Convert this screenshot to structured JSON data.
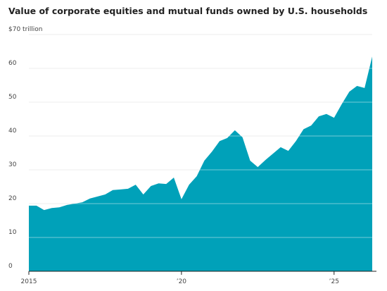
{
  "chart_data": {
    "type": "area",
    "title": "Value of corporate equities and mutual funds owned by U.S. households",
    "x": [
      2015,
      2015.25,
      2015.5,
      2015.75,
      2016,
      2016.25,
      2016.5,
      2016.75,
      2017,
      2017.25,
      2017.5,
      2017.75,
      2018,
      2018.25,
      2018.5,
      2018.75,
      2019,
      2019.25,
      2019.5,
      2019.75,
      2020,
      2020.25,
      2020.5,
      2020.75,
      2021,
      2021.25,
      2021.5,
      2021.75,
      2022,
      2022.25,
      2022.5,
      2022.75,
      2023,
      2023.25,
      2023.5,
      2023.75,
      2024,
      2024.25,
      2024.5,
      2024.75,
      2025,
      2025.25,
      2025.5,
      2025.75,
      2026,
      2026.25
    ],
    "values": [
      19.4,
      19.4,
      18.1,
      18.7,
      18.9,
      19.6,
      20.0,
      20.4,
      21.5,
      22.1,
      22.7,
      24.0,
      24.2,
      24.4,
      25.6,
      22.7,
      25.2,
      26.0,
      25.8,
      27.7,
      21.3,
      25.6,
      28.1,
      32.7,
      35.4,
      38.5,
      39.4,
      41.7,
      39.6,
      32.7,
      30.8,
      32.9,
      34.8,
      36.7,
      35.6,
      38.5,
      42.0,
      43.1,
      45.8,
      46.5,
      45.4,
      49.4,
      53.1,
      54.8,
      54.2,
      63.5
    ],
    "color": "#00a1b9",
    "xlim": [
      2015,
      2026.25
    ],
    "xticks": [
      {
        "value": 2015,
        "label": "2015"
      },
      {
        "value": 2020,
        "label": "’20"
      },
      {
        "value": 2025,
        "label": "’25"
      }
    ],
    "ylim": [
      0,
      70
    ],
    "yticks": [
      0,
      10,
      20,
      30,
      40,
      50,
      60,
      {
        "value": 70,
        "label": "$70 trillion"
      }
    ],
    "grid": true
  }
}
